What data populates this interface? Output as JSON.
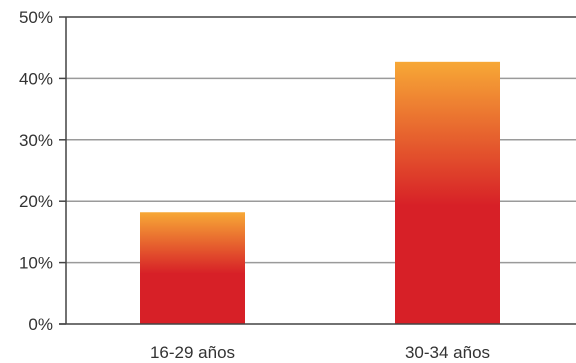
{
  "chart_data": {
    "type": "bar",
    "categories": [
      "16-29 años",
      "30-34 años"
    ],
    "values": [
      18.2,
      42.7
    ],
    "ylim": [
      0,
      50
    ],
    "yticks": [
      0,
      10,
      20,
      30,
      40,
      50
    ],
    "ytick_labels": [
      "0%",
      "10%",
      "20%",
      "30%",
      "40%",
      "50%"
    ],
    "grid": true,
    "legend": "none",
    "colors": {
      "bar_top": "#f7a836",
      "bar_bottom": "#d72027",
      "gridline": "#9a9a9a",
      "axis": "#444444"
    }
  }
}
